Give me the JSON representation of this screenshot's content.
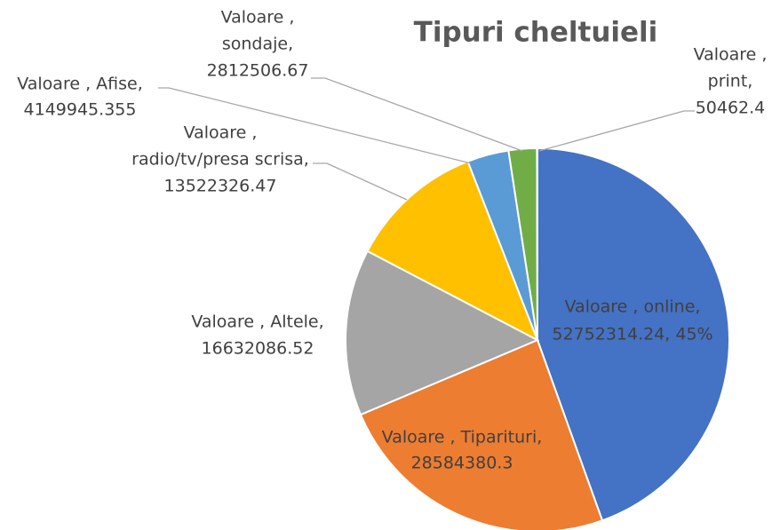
{
  "chart_data": {
    "type": "pie",
    "title": "Tipuri cheltuieli",
    "values": [
      52752314.24,
      28584380.3,
      16632086.52,
      13522326.47,
      4149945.355,
      2812506.67,
      50462.4
    ],
    "value_labels": [
      [
        "Valoare , online,",
        "52752314.24, 45%"
      ],
      [
        "Valoare , Tiparituri,",
        "28584380.3"
      ],
      [
        "Valoare , Altele,",
        "16632086.52"
      ],
      [
        "Valoare ,",
        "radio/tv/presa scrisa,",
        "13522326.47"
      ],
      [
        "Valoare , Afise,",
        "4149945.355"
      ],
      [
        "Valoare ,",
        "sondaje,",
        "2812506.67"
      ],
      [
        "Valoare ,",
        "print,",
        "50462.4"
      ]
    ],
    "colors": [
      "#4472c4",
      "#ed7d31",
      "#a5a5a5",
      "#ffc000",
      "#5b9bd5",
      "#70ad47",
      "#264478"
    ]
  }
}
